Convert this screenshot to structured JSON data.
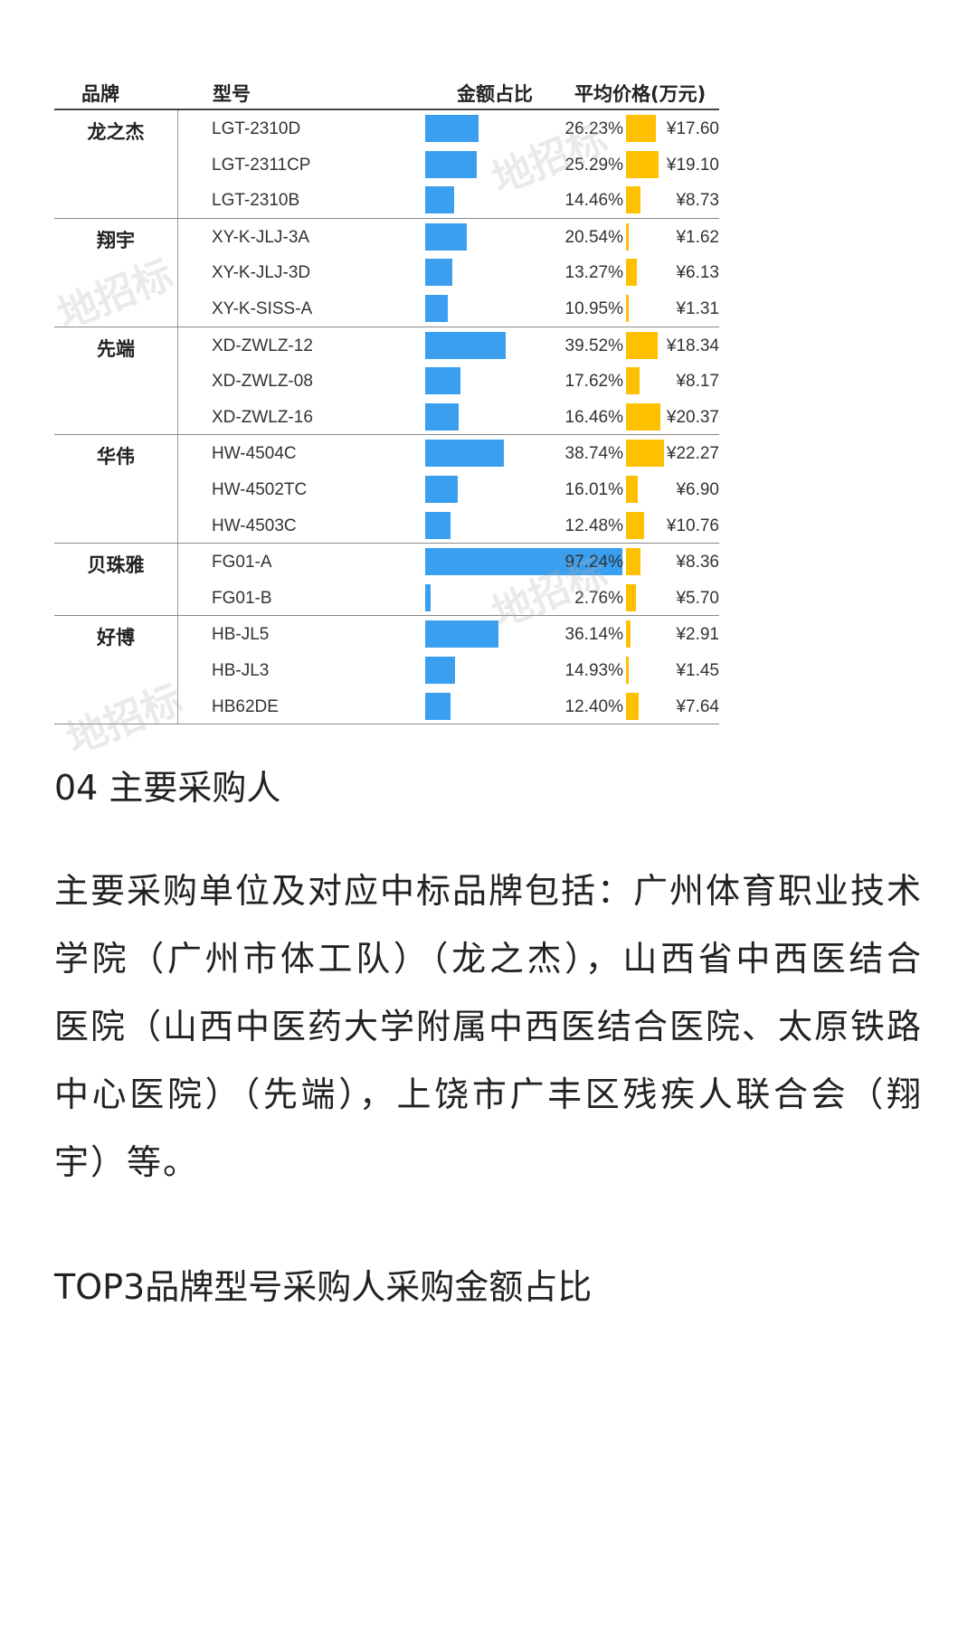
{
  "table": {
    "headers": {
      "brand": "品牌",
      "model": "型号",
      "share": "金额占比",
      "price": "平均价格(万元)"
    },
    "groups": [
      {
        "brand": "龙之杰",
        "rows": [
          {
            "model": "LGT-2310D",
            "share": "26.23%",
            "share_value": 26.23,
            "price": "¥17.60",
            "price_value": 17.6
          },
          {
            "model": "LGT-2311CP",
            "share": "25.29%",
            "share_value": 25.29,
            "price": "¥19.10",
            "price_value": 19.1
          },
          {
            "model": "LGT-2310B",
            "share": "14.46%",
            "share_value": 14.46,
            "price": "¥8.73",
            "price_value": 8.73
          }
        ]
      },
      {
        "brand": "翔宇",
        "rows": [
          {
            "model": "XY-K-JLJ-3A",
            "share": "20.54%",
            "share_value": 20.54,
            "price": "¥1.62",
            "price_value": 1.62
          },
          {
            "model": "XY-K-JLJ-3D",
            "share": "13.27%",
            "share_value": 13.27,
            "price": "¥6.13",
            "price_value": 6.13
          },
          {
            "model": "XY-K-SISS-A",
            "share": "10.95%",
            "share_value": 10.95,
            "price": "¥1.31",
            "price_value": 1.31
          }
        ]
      },
      {
        "brand": "先端",
        "rows": [
          {
            "model": "XD-ZWLZ-12",
            "share": "39.52%",
            "share_value": 39.52,
            "price": "¥18.34",
            "price_value": 18.34
          },
          {
            "model": "XD-ZWLZ-08",
            "share": "17.62%",
            "share_value": 17.62,
            "price": "¥8.17",
            "price_value": 8.17
          },
          {
            "model": "XD-ZWLZ-16",
            "share": "16.46%",
            "share_value": 16.46,
            "price": "¥20.37",
            "price_value": 20.37
          }
        ]
      },
      {
        "brand": "华伟",
        "rows": [
          {
            "model": "HW-4504C",
            "share": "38.74%",
            "share_value": 38.74,
            "price": "¥22.27",
            "price_value": 22.27
          },
          {
            "model": "HW-4502TC",
            "share": "16.01%",
            "share_value": 16.01,
            "price": "¥6.90",
            "price_value": 6.9
          },
          {
            "model": "HW-4503C",
            "share": "12.48%",
            "share_value": 12.48,
            "price": "¥10.76",
            "price_value": 10.76
          }
        ]
      },
      {
        "brand": "贝珠雅",
        "rows": [
          {
            "model": "FG01-A",
            "share": "97.24%",
            "share_value": 97.24,
            "price": "¥8.36",
            "price_value": 8.36
          },
          {
            "model": "FG01-B",
            "share": "2.76%",
            "share_value": 2.76,
            "price": "¥5.70",
            "price_value": 5.7
          }
        ]
      },
      {
        "brand": "好博",
        "rows": [
          {
            "model": "HB-JL5",
            "share": "36.14%",
            "share_value": 36.14,
            "price": "¥2.91",
            "price_value": 2.91
          },
          {
            "model": "HB-JL3",
            "share": "14.93%",
            "share_value": 14.93,
            "price": "¥1.45",
            "price_value": 1.45
          },
          {
            "model": "HB62DE",
            "share": "12.40%",
            "share_value": 12.4,
            "price": "¥7.64",
            "price_value": 7.64
          }
        ]
      }
    ],
    "colors": {
      "share_bar": "#3a9fef",
      "price_bar": "#ffc000"
    }
  },
  "watermark": "地招标",
  "section_title": "04 主要采购人",
  "paragraph": "主要采购单位及对应中标品牌包括：广州体育职业技术学院（广州市体工队）（龙之杰），山西省中西医结合医院（山西中医药大学附属中西医结合医院、太原铁路中心医院）（先端），上饶市广丰区残疾人联合会（翔宇）等。",
  "subheading": "TOP3品牌型号采购人采购金额占比"
}
